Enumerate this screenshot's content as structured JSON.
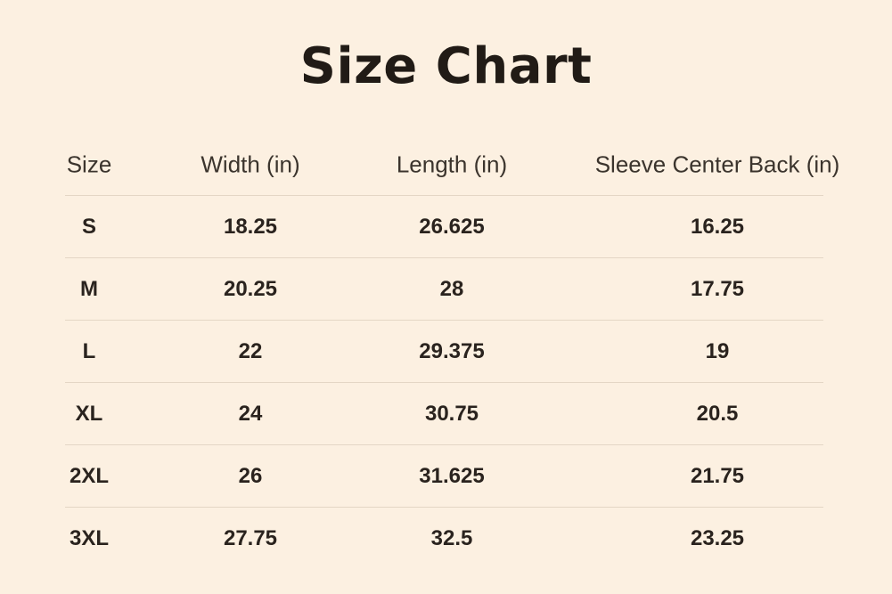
{
  "title": "Size Chart",
  "colors": {
    "background": "#fcf0e1",
    "title_text": "#211b16",
    "header_text": "#3b342d",
    "value_text": "#2a231e",
    "divider": "#e4d6c5"
  },
  "chart_data": {
    "type": "table",
    "title": "Size Chart",
    "columns": [
      "Size",
      "Width (in)",
      "Length (in)",
      "Sleeve Center Back (in)"
    ],
    "rows": [
      [
        "S",
        "18.25",
        "26.625",
        "16.25"
      ],
      [
        "M",
        "20.25",
        "28",
        "17.75"
      ],
      [
        "L",
        "22",
        "29.375",
        "19"
      ],
      [
        "XL",
        "24",
        "30.75",
        "20.5"
      ],
      [
        "2XL",
        "26",
        "31.625",
        "21.75"
      ],
      [
        "3XL",
        "27.75",
        "32.5",
        "23.25"
      ]
    ],
    "layout_hints": {
      "grid": "horizontal row dividers only",
      "alignment": "all cells center-aligned",
      "last_row_divider": false
    }
  }
}
